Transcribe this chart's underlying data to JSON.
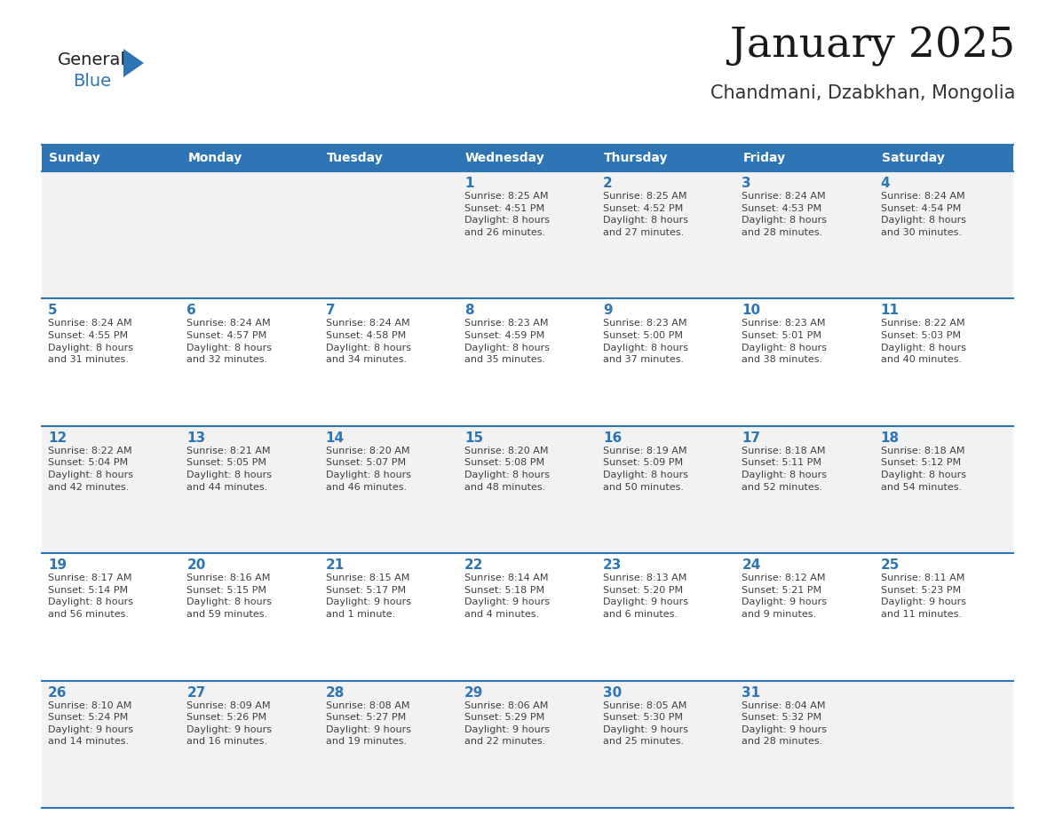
{
  "title": "January 2025",
  "subtitle": "Chandmani, Dzabkhan, Mongolia",
  "header_color": "#2E75B6",
  "header_text_color": "#FFFFFF",
  "cell_bg_odd": "#F2F2F2",
  "cell_bg_even": "#FFFFFF",
  "day_number_color": "#2E75B6",
  "text_color": "#404040",
  "line_color": "#2E75B6",
  "days_of_week": [
    "Sunday",
    "Monday",
    "Tuesday",
    "Wednesday",
    "Thursday",
    "Friday",
    "Saturday"
  ],
  "weeks": [
    [
      {
        "day": null,
        "info": null
      },
      {
        "day": null,
        "info": null
      },
      {
        "day": null,
        "info": null
      },
      {
        "day": 1,
        "info": "Sunrise: 8:25 AM\nSunset: 4:51 PM\nDaylight: 8 hours\nand 26 minutes."
      },
      {
        "day": 2,
        "info": "Sunrise: 8:25 AM\nSunset: 4:52 PM\nDaylight: 8 hours\nand 27 minutes."
      },
      {
        "day": 3,
        "info": "Sunrise: 8:24 AM\nSunset: 4:53 PM\nDaylight: 8 hours\nand 28 minutes."
      },
      {
        "day": 4,
        "info": "Sunrise: 8:24 AM\nSunset: 4:54 PM\nDaylight: 8 hours\nand 30 minutes."
      }
    ],
    [
      {
        "day": 5,
        "info": "Sunrise: 8:24 AM\nSunset: 4:55 PM\nDaylight: 8 hours\nand 31 minutes."
      },
      {
        "day": 6,
        "info": "Sunrise: 8:24 AM\nSunset: 4:57 PM\nDaylight: 8 hours\nand 32 minutes."
      },
      {
        "day": 7,
        "info": "Sunrise: 8:24 AM\nSunset: 4:58 PM\nDaylight: 8 hours\nand 34 minutes."
      },
      {
        "day": 8,
        "info": "Sunrise: 8:23 AM\nSunset: 4:59 PM\nDaylight: 8 hours\nand 35 minutes."
      },
      {
        "day": 9,
        "info": "Sunrise: 8:23 AM\nSunset: 5:00 PM\nDaylight: 8 hours\nand 37 minutes."
      },
      {
        "day": 10,
        "info": "Sunrise: 8:23 AM\nSunset: 5:01 PM\nDaylight: 8 hours\nand 38 minutes."
      },
      {
        "day": 11,
        "info": "Sunrise: 8:22 AM\nSunset: 5:03 PM\nDaylight: 8 hours\nand 40 minutes."
      }
    ],
    [
      {
        "day": 12,
        "info": "Sunrise: 8:22 AM\nSunset: 5:04 PM\nDaylight: 8 hours\nand 42 minutes."
      },
      {
        "day": 13,
        "info": "Sunrise: 8:21 AM\nSunset: 5:05 PM\nDaylight: 8 hours\nand 44 minutes."
      },
      {
        "day": 14,
        "info": "Sunrise: 8:20 AM\nSunset: 5:07 PM\nDaylight: 8 hours\nand 46 minutes."
      },
      {
        "day": 15,
        "info": "Sunrise: 8:20 AM\nSunset: 5:08 PM\nDaylight: 8 hours\nand 48 minutes."
      },
      {
        "day": 16,
        "info": "Sunrise: 8:19 AM\nSunset: 5:09 PM\nDaylight: 8 hours\nand 50 minutes."
      },
      {
        "day": 17,
        "info": "Sunrise: 8:18 AM\nSunset: 5:11 PM\nDaylight: 8 hours\nand 52 minutes."
      },
      {
        "day": 18,
        "info": "Sunrise: 8:18 AM\nSunset: 5:12 PM\nDaylight: 8 hours\nand 54 minutes."
      }
    ],
    [
      {
        "day": 19,
        "info": "Sunrise: 8:17 AM\nSunset: 5:14 PM\nDaylight: 8 hours\nand 56 minutes."
      },
      {
        "day": 20,
        "info": "Sunrise: 8:16 AM\nSunset: 5:15 PM\nDaylight: 8 hours\nand 59 minutes."
      },
      {
        "day": 21,
        "info": "Sunrise: 8:15 AM\nSunset: 5:17 PM\nDaylight: 9 hours\nand 1 minute."
      },
      {
        "day": 22,
        "info": "Sunrise: 8:14 AM\nSunset: 5:18 PM\nDaylight: 9 hours\nand 4 minutes."
      },
      {
        "day": 23,
        "info": "Sunrise: 8:13 AM\nSunset: 5:20 PM\nDaylight: 9 hours\nand 6 minutes."
      },
      {
        "day": 24,
        "info": "Sunrise: 8:12 AM\nSunset: 5:21 PM\nDaylight: 9 hours\nand 9 minutes."
      },
      {
        "day": 25,
        "info": "Sunrise: 8:11 AM\nSunset: 5:23 PM\nDaylight: 9 hours\nand 11 minutes."
      }
    ],
    [
      {
        "day": 26,
        "info": "Sunrise: 8:10 AM\nSunset: 5:24 PM\nDaylight: 9 hours\nand 14 minutes."
      },
      {
        "day": 27,
        "info": "Sunrise: 8:09 AM\nSunset: 5:26 PM\nDaylight: 9 hours\nand 16 minutes."
      },
      {
        "day": 28,
        "info": "Sunrise: 8:08 AM\nSunset: 5:27 PM\nDaylight: 9 hours\nand 19 minutes."
      },
      {
        "day": 29,
        "info": "Sunrise: 8:06 AM\nSunset: 5:29 PM\nDaylight: 9 hours\nand 22 minutes."
      },
      {
        "day": 30,
        "info": "Sunrise: 8:05 AM\nSunset: 5:30 PM\nDaylight: 9 hours\nand 25 minutes."
      },
      {
        "day": 31,
        "info": "Sunrise: 8:04 AM\nSunset: 5:32 PM\nDaylight: 9 hours\nand 28 minutes."
      },
      {
        "day": null,
        "info": null
      }
    ]
  ]
}
